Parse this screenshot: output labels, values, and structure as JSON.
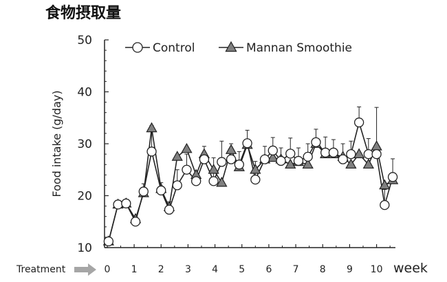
{
  "chart_data": {
    "type": "line",
    "title": "食物摂取量",
    "ylabel": "Food intake (g/day)",
    "xlabel": "week",
    "treatment_label": "Treatment",
    "ylim": [
      10,
      50
    ],
    "yticks": [
      10,
      20,
      30,
      40,
      50
    ],
    "xlim": [
      -0.1,
      10.7
    ],
    "xticks": [
      0,
      1,
      2,
      3,
      4,
      5,
      6,
      7,
      8,
      9,
      10
    ],
    "legend_position": "top",
    "grid": false,
    "series": [
      {
        "name": "Control",
        "marker": "circle",
        "fill": "#ffffff",
        "x": [
          0.05,
          0.4,
          0.7,
          1.05,
          1.35,
          1.65,
          2.0,
          2.3,
          2.6,
          2.95,
          3.3,
          3.6,
          3.95,
          4.25,
          4.6,
          4.9,
          5.2,
          5.5,
          5.85,
          6.15,
          6.45,
          6.8,
          7.1,
          7.45,
          7.75,
          8.1,
          8.4,
          8.75,
          9.05,
          9.35,
          9.7,
          10.0,
          10.3,
          10.6
        ],
        "y": [
          11.2,
          18.3,
          18.5,
          15.0,
          20.8,
          28.5,
          21.0,
          17.3,
          22.0,
          25.0,
          22.8,
          27.0,
          22.8,
          26.5,
          27.0,
          26.0,
          30.1,
          23.1,
          27.0,
          28.7,
          26.7,
          28.1,
          26.7,
          27.5,
          30.3,
          28.3,
          28.3,
          27.0,
          28.0,
          34.1,
          28.0,
          28.0,
          18.2,
          23.6
        ],
        "err": [
          0.3,
          0.5,
          0.5,
          1.0,
          1.5,
          5.0,
          1.5,
          1.5,
          3.0,
          3.0,
          2.0,
          2.5,
          4.5,
          4.0,
          3.0,
          2.5,
          2.5,
          3.5,
          2.5,
          2.5,
          2.5,
          3.0,
          2.5,
          2.5,
          2.5,
          3.0,
          2.5,
          3.0,
          2.5,
          3.0,
          3.0,
          9.0,
          3.0,
          3.5
        ]
      },
      {
        "name": "Mannan Smoothie",
        "marker": "triangle",
        "fill": "#808080",
        "x": [
          0.05,
          0.4,
          0.7,
          1.05,
          1.35,
          1.65,
          2.0,
          2.3,
          2.6,
          2.95,
          3.3,
          3.6,
          3.95,
          4.25,
          4.6,
          4.9,
          5.2,
          5.5,
          5.85,
          6.15,
          6.45,
          6.8,
          7.1,
          7.45,
          7.75,
          8.1,
          8.4,
          8.75,
          9.05,
          9.35,
          9.7,
          10.0,
          10.3,
          10.6
        ],
        "y": [
          11.2,
          18.3,
          18.5,
          15.5,
          20.5,
          33.0,
          21.3,
          17.8,
          27.5,
          29.0,
          24.0,
          28.0,
          25.0,
          22.5,
          28.8,
          25.5,
          29.8,
          25.0,
          27.0,
          27.3,
          27.0,
          26.0,
          26.5,
          26.0,
          30.0,
          28.0,
          28.0,
          27.5,
          26.0,
          28.0,
          26.0,
          29.5,
          22.0,
          23.0
        ]
      }
    ]
  }
}
